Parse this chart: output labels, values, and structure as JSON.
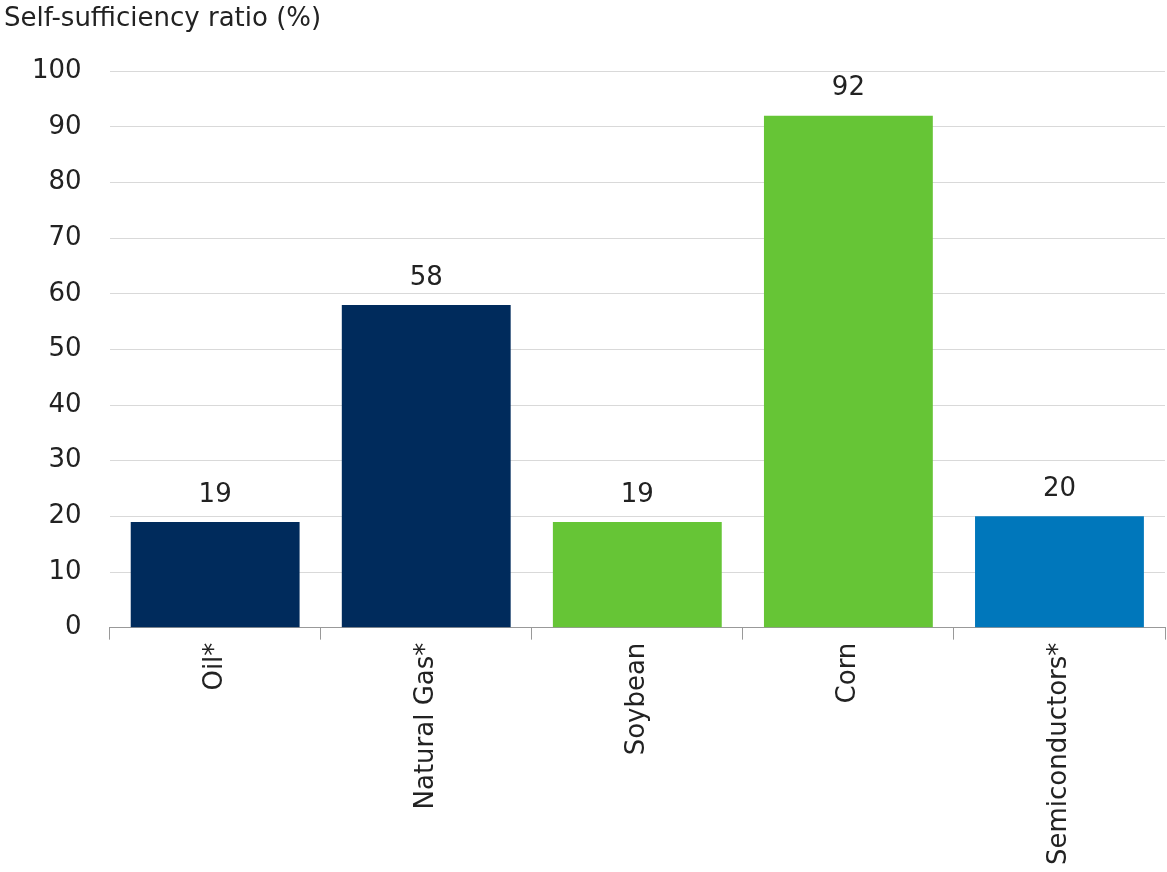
{
  "chart_data": {
    "type": "bar",
    "ylabel": "Self-sufficiency ratio (%)",
    "categories": [
      "Oil*",
      "Natural Gas*",
      "Soybean",
      "Corn",
      "Semiconductors*"
    ],
    "values": [
      19,
      58,
      19,
      92,
      20
    ],
    "colors": [
      "#002b5c",
      "#002b5c",
      "#66c536",
      "#66c536",
      "#0077bb"
    ],
    "ylim": [
      0,
      100
    ],
    "yticks": [
      0,
      10,
      20,
      30,
      40,
      50,
      60,
      70,
      80,
      90,
      100
    ],
    "grid": "y",
    "data_labels": true,
    "legend": false
  }
}
